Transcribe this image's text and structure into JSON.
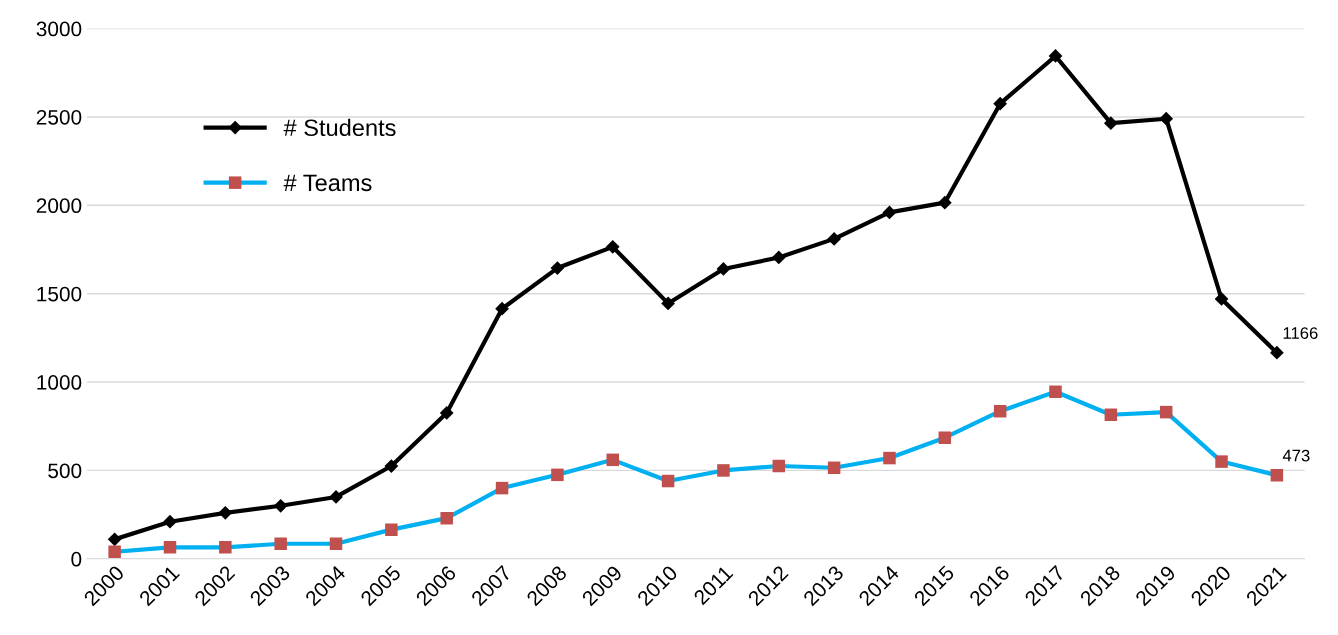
{
  "chart_data": {
    "type": "line",
    "categories": [
      "2000",
      "2001",
      "2002",
      "2003",
      "2004",
      "2005",
      "2006",
      "2007",
      "2008",
      "2009",
      "2010",
      "2011",
      "2012",
      "2013",
      "2014",
      "2015",
      "2016",
      "2017",
      "2018",
      "2019",
      "2020",
      "2021"
    ],
    "series": [
      {
        "name": "# Students",
        "color": "#000000",
        "marker": "diamond",
        "values": [
          110,
          210,
          260,
          300,
          350,
          525,
          825,
          1415,
          1645,
          1765,
          1445,
          1640,
          1705,
          1810,
          1960,
          2015,
          2575,
          2845,
          2465,
          2490,
          1470,
          1166
        ]
      },
      {
        "name": "# Teams",
        "color": "#00b0f0",
        "marker": "square",
        "colors": [
          "#c0504d",
          "#c0504d",
          "#c0504d",
          "#c0504d",
          "#c0504d",
          "#c0504d",
          "#c0504d",
          "#c0504d",
          "#c0504d",
          "#c0504d",
          "#c0504d",
          "#c0504d",
          "#c0504d",
          "#c0504d",
          "#c0504d",
          "#c0504d",
          "#c0504d",
          "#c0504d",
          "#c0504d",
          "#c0504d",
          "#c0504d",
          "#c0504d"
        ],
        "values": [
          40,
          65,
          65,
          85,
          85,
          165,
          230,
          400,
          475,
          560,
          440,
          500,
          525,
          515,
          570,
          685,
          835,
          945,
          815,
          830,
          550,
          473
        ]
      }
    ],
    "ylim": [
      0,
      3000
    ],
    "yticks": [
      0,
      500,
      1000,
      1500,
      2000,
      2500,
      3000
    ],
    "grid": "y",
    "legend": "top left",
    "line_style": "solid",
    "annotations": [
      {
        "text": "1166",
        "x": "2021",
        "y": 1166
      },
      {
        "text": "473",
        "x": "2021",
        "y": 473
      }
    ]
  }
}
